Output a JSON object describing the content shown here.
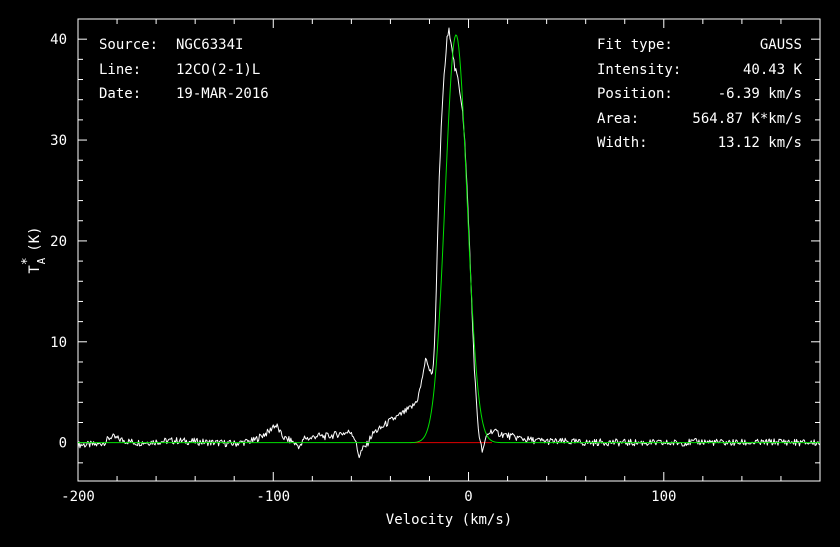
{
  "info_left": [
    {
      "key": "Source:",
      "value": "NGC6334I"
    },
    {
      "key": "Line:",
      "value": "12CO(2-1)L"
    },
    {
      "key": "Date:",
      "value": "19-MAR-2016"
    }
  ],
  "info_right": [
    {
      "key": "Fit type:",
      "value": "GAUSS"
    },
    {
      "key": "Intensity:",
      "value": "40.43 K"
    },
    {
      "key": "Position:",
      "value": "-6.39 km/s"
    },
    {
      "key": "Area:",
      "value": "564.87 K*km/s"
    },
    {
      "key": "Width:",
      "value": "13.12 km/s"
    }
  ],
  "chart_data": {
    "type": "line",
    "xlabel": "Velocity (km/s)",
    "ylabel": "T",
    "ylabel_sup": "*",
    "ylabel_sub": "A",
    "ylabel_unit": "(K)",
    "xlim": [
      -200,
      180
    ],
    "ylim": [
      -3.8,
      42
    ],
    "xticks_major": [
      -200,
      -100,
      0,
      100
    ],
    "xticks_labels": [
      "-200",
      "-100",
      "0",
      "100"
    ],
    "yticks_major": [
      0,
      10,
      20,
      30,
      40
    ],
    "yticks_labels": [
      "0",
      "10",
      "20",
      "30",
      "40"
    ],
    "series": [
      {
        "color": "#ffffff",
        "x": [
          -200,
          -190,
          -186,
          -183,
          -180,
          -176,
          -170,
          -160,
          -150,
          -140,
          -130,
          -120,
          -110,
          -105,
          -102,
          -100,
          -98,
          -96,
          -94,
          -91,
          -88,
          -86,
          -84,
          -81,
          -78,
          -74,
          -70,
          -66,
          -62,
          -60,
          -58,
          -57,
          -56,
          -55,
          -54,
          -52,
          -50,
          -48,
          -45,
          -42,
          -39,
          -36,
          -33,
          -30,
          -28,
          -26,
          -24,
          -23,
          -22,
          -21,
          -20,
          -19,
          -18,
          -17,
          -16,
          -15,
          -14,
          -13,
          -12,
          -11,
          -10,
          -9,
          -8,
          -7,
          -6,
          -5,
          -4,
          -3,
          -2,
          -1,
          0,
          1,
          2,
          3,
          4,
          5,
          6,
          7,
          8,
          9,
          10,
          12,
          14,
          16,
          18,
          20,
          22,
          25,
          30,
          35,
          40,
          45,
          50,
          60,
          70,
          80,
          90,
          100,
          110,
          120,
          130,
          140,
          150,
          160,
          170,
          180
        ],
        "y": [
          -0.2,
          -0.2,
          0.1,
          0.6,
          0.4,
          0.2,
          0.0,
          0.1,
          0.2,
          0.1,
          0.0,
          -0.1,
          0.2,
          0.8,
          1.1,
          1.7,
          1.6,
          0.8,
          0.4,
          0.2,
          -0.2,
          -0.4,
          0.5,
          0.4,
          0.7,
          0.6,
          0.7,
          0.9,
          1.0,
          1.1,
          0.3,
          -0.7,
          -1.3,
          -0.9,
          -0.6,
          -0.2,
          0.6,
          1.1,
          1.4,
          1.9,
          2.3,
          2.6,
          3.0,
          3.4,
          3.7,
          4.4,
          6.0,
          7.3,
          8.1,
          8.0,
          7.2,
          6.8,
          7.6,
          12.0,
          19.0,
          26.0,
          31.0,
          35.0,
          37.5,
          40.0,
          40.8,
          40.0,
          38.5,
          37.0,
          36.5,
          35.5,
          34.3,
          33.0,
          30.0,
          26.0,
          22.0,
          17.0,
          12.0,
          7.5,
          4.0,
          1.5,
          0.0,
          -0.8,
          -0.5,
          0.6,
          0.9,
          1.2,
          1.0,
          0.9,
          0.8,
          0.7,
          0.6,
          0.5,
          0.3,
          0.2,
          0.15,
          0.1,
          0.1,
          0.0,
          0.05,
          0.0,
          0.0,
          -0.05,
          0.0,
          0.1,
          0.0,
          0.0,
          0.0,
          0.1,
          0.0,
          0.0
        ]
      },
      {
        "color": "#00e000",
        "gaussian": {
          "amplitude": 40.43,
          "center": -6.39,
          "fwhm": 13.12
        }
      }
    ],
    "baseline_segment": {
      "color": "#e00000",
      "x": [
        -30,
        12
      ],
      "y": 0
    }
  }
}
